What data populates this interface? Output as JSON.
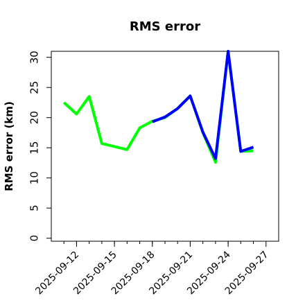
{
  "chart_data": {
    "type": "line",
    "title": "RMS error",
    "xlabel": "",
    "ylabel": "RMS error (km)",
    "ylim": [
      -0.5,
      31
    ],
    "yticks": [
      0,
      5,
      10,
      15,
      20,
      25,
      30
    ],
    "ytick_labels": [
      "0",
      "5",
      "10",
      "15",
      "20",
      "25",
      "30"
    ],
    "x_dates": [
      "2025-09-11",
      "2025-09-12",
      "2025-09-13",
      "2025-09-14",
      "2025-09-15",
      "2025-09-16",
      "2025-09-17",
      "2025-09-18",
      "2025-09-19",
      "2025-09-20",
      "2025-09-21",
      "2025-09-22",
      "2025-09-23",
      "2025-09-24",
      "2025-09-25",
      "2025-09-26"
    ],
    "xlim": [
      "2025-09-10",
      "2025-09-28"
    ],
    "xticks": [
      "2025-09-12",
      "2025-09-15",
      "2025-09-18",
      "2025-09-21",
      "2025-09-24",
      "2025-09-27"
    ],
    "xtick_labels": [
      "2025-09-12",
      "2025-09-15",
      "2025-09-18",
      "2025-09-21",
      "2025-09-24",
      "2025-09-27"
    ],
    "xtick_colors": [
      "#000000",
      "#000000",
      "#1a8a1a",
      "#000000",
      "#000000",
      "#000000"
    ],
    "grid": false,
    "series": [
      {
        "color": "#00ff00",
        "x": [
          "2025-09-11",
          "2025-09-12",
          "2025-09-13",
          "2025-09-14",
          "2025-09-16",
          "2025-09-17",
          "2025-09-18",
          "2025-09-19",
          "2025-09-20",
          "2025-09-21",
          "2025-09-22",
          "2025-09-23",
          "2025-09-24",
          "2025-09-25",
          "2025-09-26"
        ],
        "values": [
          22.5,
          20.6,
          23.5,
          15.7,
          14.7,
          18.3,
          19.4,
          20.0,
          21.5,
          23.6,
          17.5,
          12.6,
          31.0,
          14.4,
          14.5
        ]
      },
      {
        "color": "#0000ff",
        "x": [
          "2025-09-18",
          "2025-09-19",
          "2025-09-20",
          "2025-09-21",
          "2025-09-22",
          "2025-09-23",
          "2025-09-24",
          "2025-09-25",
          "2025-09-26"
        ],
        "values": [
          19.3,
          20.1,
          21.5,
          23.6,
          17.6,
          13.2,
          31.0,
          14.4,
          15.1
        ]
      }
    ]
  }
}
